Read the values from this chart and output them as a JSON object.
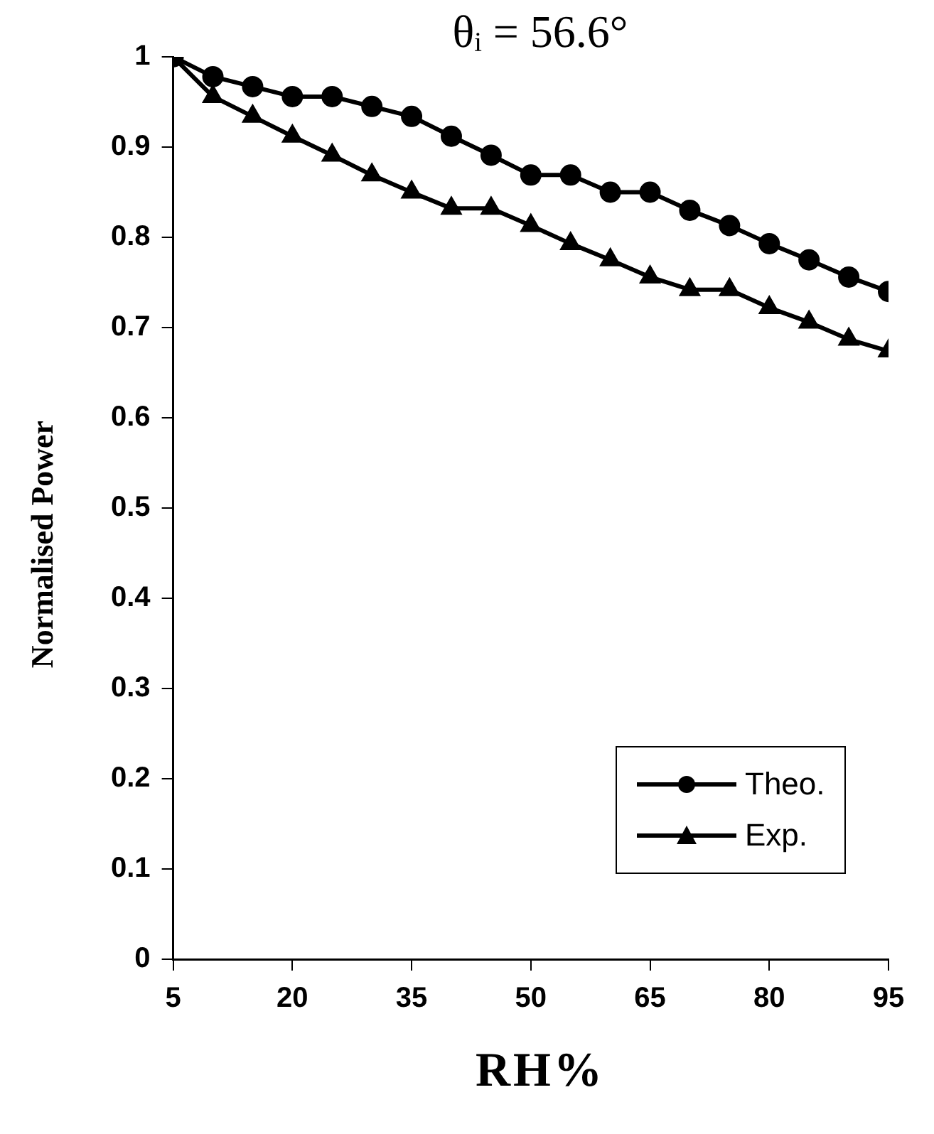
{
  "chart_data": {
    "type": "line",
    "title": "θᵢ = 56.6°",
    "xlabel": "RH%",
    "ylabel": "Normalised Power",
    "x": [
      5,
      10,
      15,
      20,
      25,
      30,
      35,
      40,
      45,
      50,
      55,
      60,
      65,
      70,
      75,
      80,
      85,
      90,
      95
    ],
    "series": [
      {
        "name": "Theo.",
        "color": "#000000",
        "marker": "circle",
        "values": [
          1,
          0.978,
          0.967,
          0.956,
          0.956,
          0.945,
          0.934,
          0.912,
          0.891,
          0.869,
          0.869,
          0.85,
          0.85,
          0.83,
          0.813,
          0.793,
          0.775,
          0.756,
          0.74
        ]
      },
      {
        "name": "Exp.",
        "color": "#000000",
        "marker": "triangle",
        "values": [
          1,
          0.956,
          0.934,
          0.912,
          0.891,
          0.869,
          0.85,
          0.832,
          0.832,
          0.813,
          0.793,
          0.775,
          0.756,
          0.742,
          0.742,
          0.722,
          0.706,
          0.687,
          0.674
        ]
      }
    ],
    "xlim": [
      5,
      95
    ],
    "xticks": [
      5,
      20,
      35,
      50,
      65,
      80,
      95
    ],
    "ylim": [
      0,
      1
    ],
    "yticks": [
      0,
      0.1,
      0.2,
      0.3,
      0.4,
      0.5,
      0.6,
      0.7,
      0.8,
      0.9,
      1
    ],
    "grid": false,
    "legend": "bottom right",
    "line_style": "solid"
  }
}
